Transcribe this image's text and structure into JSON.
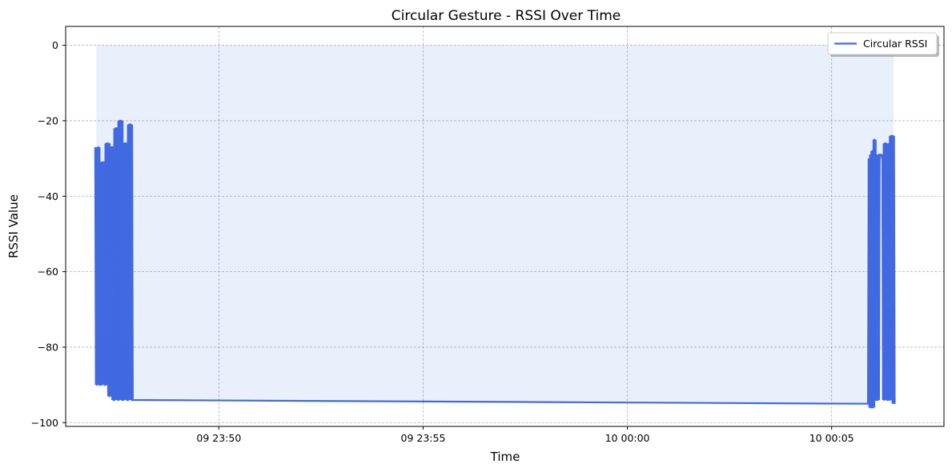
{
  "chart_data": {
    "type": "line",
    "title": "Circular Gesture - RSSI Over Time",
    "xlabel": "Time",
    "ylabel": "RSSI Value",
    "x_axis": {
      "type": "time",
      "range": [
        "09 23:46:15",
        "10 00:07:45"
      ],
      "ticks": [
        "09 23:50",
        "09 23:55",
        "10 00:00",
        "10 00:05"
      ]
    },
    "ylim": [
      -101,
      5
    ],
    "yticks": [
      0,
      -20,
      -40,
      -60,
      -80,
      -100
    ],
    "grid": true,
    "legend_position": "top-right",
    "fill_to": 0,
    "series": [
      {
        "name": "Circular RSSI",
        "color": "#4169e1",
        "points": [
          [
            "09 23:47:00",
            -27
          ],
          [
            "09 23:47:01",
            -90
          ],
          [
            "09 23:47:03",
            -27
          ],
          [
            "09 23:47:05",
            -90
          ],
          [
            "09 23:47:07",
            -90
          ],
          [
            "09 23:47:08",
            -31
          ],
          [
            "09 23:47:11",
            -31
          ],
          [
            "09 23:47:12",
            -90
          ],
          [
            "09 23:47:14",
            -90
          ],
          [
            "09 23:47:15",
            -26
          ],
          [
            "09 23:47:18",
            -26
          ],
          [
            "09 23:47:19",
            -93
          ],
          [
            "09 23:47:20",
            -93
          ],
          [
            "09 23:47:21",
            -27
          ],
          [
            "09 23:47:24",
            -27
          ],
          [
            "09 23:47:25",
            -94
          ],
          [
            "09 23:47:27",
            -94
          ],
          [
            "09 23:47:28",
            -22
          ],
          [
            "09 23:47:31",
            -22
          ],
          [
            "09 23:47:32",
            -94
          ],
          [
            "09 23:47:33",
            -94
          ],
          [
            "09 23:47:34",
            -20
          ],
          [
            "09 23:47:37",
            -20
          ],
          [
            "09 23:47:38",
            -94
          ],
          [
            "09 23:47:40",
            -94
          ],
          [
            "09 23:47:41",
            -26
          ],
          [
            "09 23:47:44",
            -26
          ],
          [
            "09 23:47:45",
            -94
          ],
          [
            "09 23:47:47",
            -94
          ],
          [
            "09 23:47:48",
            -21
          ],
          [
            "09 23:47:51",
            -21
          ],
          [
            "09 23:47:52",
            -94
          ],
          [
            "10 00:05:55",
            -95
          ],
          [
            "10 00:05:56",
            -30
          ],
          [
            "10 00:05:57",
            -96
          ],
          [
            "10 00:05:58",
            -29
          ],
          [
            "10 00:05:59",
            -96
          ],
          [
            "10 00:06:00",
            -28
          ],
          [
            "10 00:06:01",
            -96
          ],
          [
            "10 00:06:02",
            -29
          ],
          [
            "10 00:06:03",
            -25
          ],
          [
            "10 00:06:04",
            -94
          ],
          [
            "10 00:06:05",
            -29
          ],
          [
            "10 00:06:06",
            -94
          ],
          [
            "10 00:06:07",
            -30
          ],
          [
            "10 00:06:08",
            -94
          ],
          [
            "10 00:06:09",
            -29
          ],
          [
            "10 00:06:11",
            -29
          ],
          [
            "10 00:06:13",
            -29
          ],
          [
            "10 00:06:14",
            -30
          ],
          [
            "10 00:06:16",
            -29
          ],
          [
            "10 00:06:17",
            -94
          ],
          [
            "10 00:06:18",
            -26
          ],
          [
            "10 00:06:20",
            -26
          ],
          [
            "10 00:06:21",
            -94
          ],
          [
            "10 00:06:22",
            -28
          ],
          [
            "10 00:06:23",
            -94
          ],
          [
            "10 00:06:25",
            -26
          ],
          [
            "10 00:06:26",
            -94
          ],
          [
            "10 00:06:27",
            -24
          ],
          [
            "10 00:06:30",
            -24
          ],
          [
            "10 00:06:31",
            -95
          ]
        ]
      }
    ]
  }
}
